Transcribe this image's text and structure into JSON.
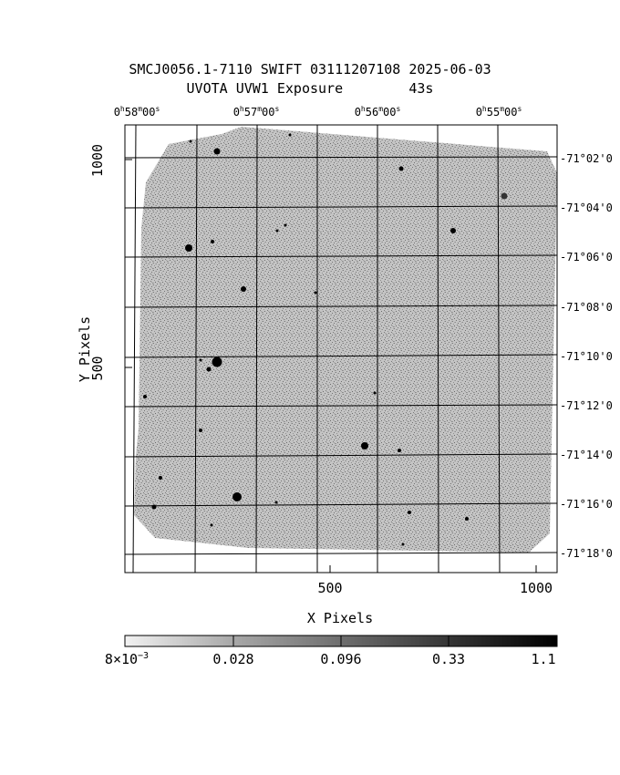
{
  "header": {
    "title_line1": "SMCJ0056.1-7110 SWIFT 03111207108 2025-06-03",
    "title_line2": "UVOTA UVW1 Exposure        43s"
  },
  "axes": {
    "xlabel": "X Pixels",
    "ylabel": "Y Pixels",
    "x_ticks": [
      "500",
      "1000"
    ],
    "y_ticks": [
      "500",
      "1000"
    ],
    "ra_labels": [
      {
        "h": "0",
        "m": "58",
        "s": "00"
      },
      {
        "h": "0",
        "m": "57",
        "s": "00"
      },
      {
        "h": "0",
        "m": "56",
        "s": "00"
      },
      {
        "h": "0",
        "m": "55",
        "s": "00"
      }
    ],
    "dec_labels": [
      "-71°02'0",
      "-71°04'0",
      "-71°06'0",
      "-71°08'0",
      "-71°10'0",
      "-71°12'0",
      "-71°14'0",
      "-71°16'0",
      "-71°18'0"
    ]
  },
  "colorbar": {
    "labels": [
      {
        "base": "8×10",
        "sup": "−3"
      },
      {
        "base": "0.028",
        "sup": ""
      },
      {
        "base": "0.096",
        "sup": ""
      },
      {
        "base": "0.33",
        "sup": ""
      },
      {
        "base": "1.1",
        "sup": ""
      }
    ]
  }
}
